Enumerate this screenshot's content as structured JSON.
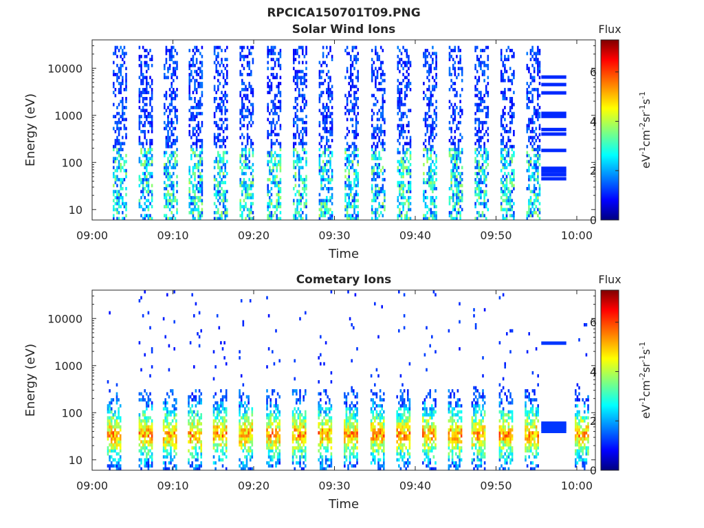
{
  "figure": {
    "title": "RPCICA150701T09.PNG"
  },
  "chart_data": [
    {
      "type": "heatmap",
      "title": "Solar Wind Ions",
      "xlabel": "Time",
      "ylabel": "Energy (eV)",
      "x_ticks": [
        "09:00",
        "09:10",
        "09:20",
        "09:30",
        "09:40",
        "09:50",
        "10:00"
      ],
      "xlim_minutes": [
        0,
        62.3
      ],
      "y_scale": "log",
      "y_ticks": [
        "10",
        "100",
        "1000",
        "10000"
      ],
      "ylim": [
        6,
        40000
      ],
      "colorbar": {
        "title": "Flux",
        "label": "eV-1cm-2sr-1s-1",
        "ticks": [
          "0",
          "2",
          "4",
          "6"
        ],
        "range": [
          0,
          7.3
        ],
        "colormap": "jet"
      },
      "sweeps_center_minute": [
        3.4,
        6.6,
        9.7,
        12.8,
        15.9,
        19.1,
        22.5,
        25.7,
        28.9,
        32.1,
        35.4,
        38.6,
        41.8,
        45.0,
        48.2,
        51.4,
        54.6
      ],
      "high_energy_extent_eV": 30000,
      "typical_flux": [
        1.2,
        2.8
      ],
      "calibration_block": {
        "start_minute": 55.6,
        "end_minute": 58.7,
        "energy_levels_eV": [
          45,
          55,
          65,
          75,
          180,
          400,
          500,
          950,
          1100,
          3000,
          4500,
          6500
        ],
        "flux": 1.2
      }
    },
    {
      "type": "heatmap",
      "title": "Cometary Ions",
      "xlabel": "Time",
      "ylabel": "Energy (eV)",
      "x_ticks": [
        "09:00",
        "09:10",
        "09:20",
        "09:30",
        "09:40",
        "09:50",
        "10:00"
      ],
      "xlim_minutes": [
        0,
        62.3
      ],
      "y_scale": "log",
      "y_ticks": [
        "10",
        "100",
        "1000",
        "10000"
      ],
      "ylim": [
        6,
        40000
      ],
      "colorbar": {
        "title": "Flux",
        "label": "eV-1cm-2sr-1s-1",
        "ticks": [
          "0",
          "2",
          "4",
          "6"
        ],
        "range": [
          0,
          7.3
        ],
        "colormap": "jet"
      },
      "sweeps_center_minute": [
        2.7,
        6.6,
        9.6,
        12.7,
        15.8,
        19.0,
        22.4,
        25.6,
        28.8,
        32.0,
        35.3,
        38.5,
        41.7,
        44.9,
        47.8,
        51.2,
        54.4,
        60.6
      ],
      "peak_energy_eV": 35,
      "peak_flux": 6.2,
      "calibration_block": {
        "start_minute": 55.6,
        "end_minute": 58.7,
        "energy_levels_eV": [
          40,
          45,
          50,
          55,
          60,
          3000
        ],
        "flux": 1.3
      }
    }
  ]
}
